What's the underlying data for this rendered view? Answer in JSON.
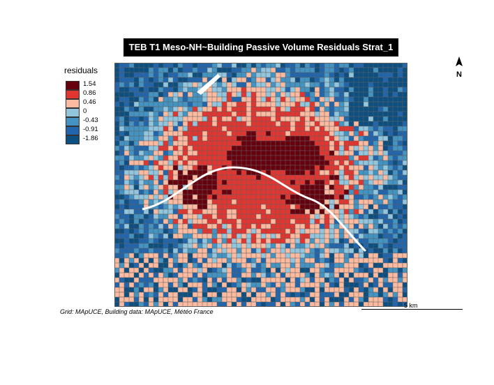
{
  "title": "TEB T1 Meso-NH~Building Passive Volume Residuals Strat_1",
  "legend": {
    "title": "residuals",
    "classes": [
      {
        "label": "1.54",
        "color": "#67000d"
      },
      {
        "label": "0.86",
        "color": "#e03530"
      },
      {
        "label": "0.46",
        "color": "#fcbba1"
      },
      {
        "label": "0",
        "color": "#92c5de"
      },
      {
        "label": "-0.43",
        "color": "#4393c3"
      },
      {
        "label": "-0.91",
        "color": "#2166ac"
      },
      {
        "label": "-1.86",
        "color": "#0c4f80"
      }
    ]
  },
  "north_arrow": {
    "label": "N"
  },
  "scale_bar": {
    "label": "5 km"
  },
  "credits": "Grid: MApUCE, Building data: MApUCE, Météo France",
  "colors": {
    "border": "#606060",
    "river": "#ffffff"
  }
}
